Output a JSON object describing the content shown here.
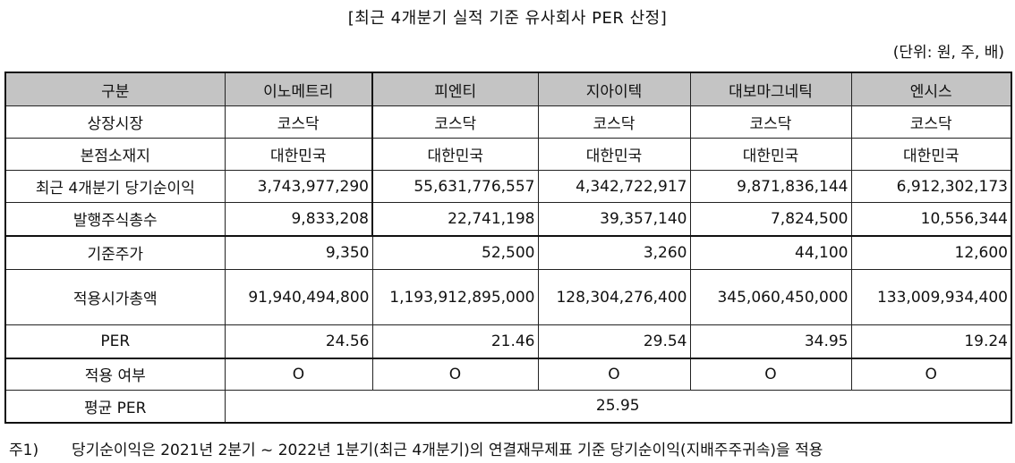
{
  "title": "[최근 4개분기 실적 기준 유사회사 PER 산정]",
  "unit": "(단위: 원, 주, 배)",
  "table": {
    "header": [
      "구분",
      "이노메트리",
      "피엔티",
      "지아이텍",
      "대보마그네틱",
      "엔시스"
    ],
    "rows": [
      {
        "label": "상장시장",
        "values": [
          "코스닥",
          "코스닥",
          "코스닥",
          "코스닥",
          "코스닥"
        ]
      },
      {
        "label": "본점소재지",
        "values": [
          "대한민국",
          "대한민국",
          "대한민국",
          "대한민국",
          "대한민국"
        ]
      },
      {
        "label": "최근 4개분기 당기순이익",
        "values": [
          "3,743,977,290",
          "55,631,776,557",
          "4,342,722,917",
          "9,871,836,144",
          "6,912,302,173"
        ]
      },
      {
        "label": "발행주식총수",
        "values": [
          "9,833,208",
          "22,741,198",
          "39,357,140",
          "7,824,500",
          "10,556,344"
        ]
      },
      {
        "label": "기준주가",
        "values": [
          "9,350",
          "52,500",
          "3,260",
          "44,100",
          "12,600"
        ]
      },
      {
        "label": "적용시가총액",
        "values": [
          "91,940,494,800",
          "1,193,912,895,000",
          "128,304,276,400",
          "345,060,450,000",
          "133,009,934,400"
        ]
      },
      {
        "label": "PER",
        "values": [
          "24.56",
          "21.46",
          "29.54",
          "34.95",
          "19.24"
        ]
      },
      {
        "label": "적용 여부",
        "values": [
          "O",
          "O",
          "O",
          "O",
          "O"
        ]
      }
    ],
    "average": {
      "label": "평균 PER",
      "value": "25.95"
    }
  },
  "footnote": {
    "tag": "주1)",
    "text": "당기순이익은 2021년 2분기 ~ 2022년 1분기(최근 4개분기)의 연결재무제표 기준 당기순이익(지배주주귀속)을 적용"
  }
}
